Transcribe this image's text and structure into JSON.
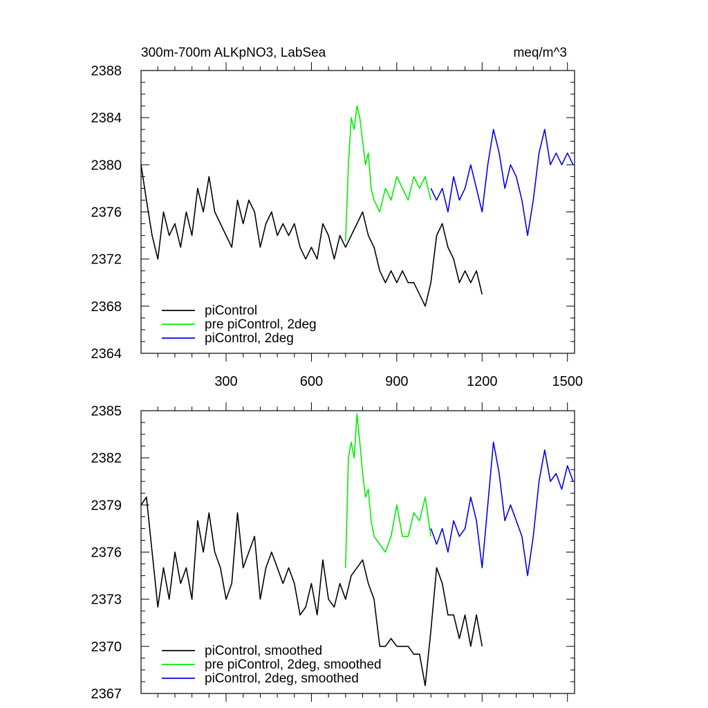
{
  "title_left": "300m-700m ALKpNO3, LabSea",
  "title_right": "meq/m^3",
  "colors": {
    "piControl": "#000000",
    "pre_piControl_2deg": "#00ee00",
    "piControl_2deg": "#0000ee"
  },
  "chart_data": [
    {
      "type": "line",
      "panel": "top",
      "title": "300m-700m ALKpNO3, LabSea",
      "units": "meq/m^3",
      "xlim": [
        1,
        1525
      ],
      "ylim": [
        2364,
        2388
      ],
      "x_ticks": [
        300,
        600,
        900,
        1200,
        1500
      ],
      "x_tick_labels": [
        "300",
        "600",
        "900",
        "1200",
        "1500"
      ],
      "y_ticks": [
        2364,
        2368,
        2372,
        2376,
        2380,
        2384,
        2388
      ],
      "y_tick_labels": [
        "2364",
        "2368",
        "2372",
        "2376",
        "2380",
        "2384",
        "2388"
      ],
      "legend_position": "bottom-left",
      "series": [
        {
          "name": "piControl",
          "color": "#000000",
          "x": [
            1,
            20,
            40,
            60,
            80,
            100,
            120,
            140,
            160,
            180,
            200,
            220,
            240,
            260,
            280,
            300,
            320,
            340,
            360,
            380,
            400,
            420,
            440,
            460,
            480,
            500,
            520,
            540,
            560,
            580,
            600,
            620,
            640,
            660,
            680,
            700,
            720,
            740,
            760,
            780,
            800,
            820,
            840,
            860,
            880,
            900,
            920,
            940,
            960,
            980,
            1000,
            1020,
            1040,
            1060,
            1080,
            1100,
            1120,
            1140,
            1160,
            1180,
            1200
          ],
          "y": [
            2380,
            2377,
            2374,
            2372,
            2376,
            2374,
            2375,
            2373,
            2376,
            2374,
            2378,
            2376,
            2379,
            2376,
            2375,
            2374,
            2373,
            2377,
            2375,
            2377,
            2376,
            2373,
            2375,
            2376,
            2374,
            2375,
            2374,
            2375,
            2373,
            2372,
            2373,
            2372,
            2375,
            2374,
            2372,
            2374,
            2373,
            2374,
            2375,
            2376,
            2374,
            2373,
            2371,
            2370,
            2371,
            2370,
            2371,
            2370,
            2370,
            2369,
            2368,
            2370,
            2374,
            2375,
            2373,
            2372,
            2370,
            2371,
            2370,
            2371,
            2369
          ]
        },
        {
          "name": "pre piControl, 2deg",
          "color": "#00ee00",
          "x": [
            720,
            730,
            740,
            750,
            760,
            770,
            780,
            790,
            800,
            810,
            820,
            840,
            860,
            880,
            900,
            920,
            940,
            960,
            980,
            1000,
            1020
          ],
          "y": [
            2373.5,
            2380,
            2384,
            2383,
            2385,
            2384,
            2382,
            2380,
            2381,
            2378,
            2377,
            2376,
            2378,
            2377,
            2379,
            2378,
            2377,
            2379,
            2378,
            2379,
            2377
          ]
        },
        {
          "name": "piControl, 2deg",
          "color": "#0000ee",
          "x": [
            1020,
            1040,
            1060,
            1080,
            1100,
            1120,
            1140,
            1160,
            1180,
            1200,
            1220,
            1240,
            1260,
            1280,
            1300,
            1320,
            1340,
            1360,
            1380,
            1400,
            1420,
            1440,
            1460,
            1480,
            1500,
            1520
          ],
          "y": [
            2378,
            2377,
            2378,
            2376,
            2379,
            2377,
            2378,
            2380,
            2378,
            2376,
            2380,
            2383,
            2381,
            2378,
            2380,
            2379,
            2377,
            2374,
            2377,
            2381,
            2383,
            2380,
            2381,
            2380,
            2381,
            2380
          ]
        }
      ]
    },
    {
      "type": "line",
      "panel": "bottom",
      "xlim": [
        1,
        1525
      ],
      "ylim": [
        2367,
        2385
      ],
      "x_ticks": [
        300,
        600,
        900,
        1200,
        1500
      ],
      "y_ticks": [
        2367,
        2370,
        2373,
        2376,
        2379,
        2382,
        2385
      ],
      "y_tick_labels": [
        "2367",
        "2370",
        "2373",
        "2376",
        "2379",
        "2382",
        "2385"
      ],
      "legend_position": "bottom-left",
      "series": [
        {
          "name": "piControl, smoothed",
          "color": "#000000",
          "x": [
            1,
            20,
            40,
            60,
            80,
            100,
            120,
            140,
            160,
            180,
            200,
            220,
            240,
            260,
            280,
            300,
            320,
            340,
            360,
            380,
            400,
            420,
            440,
            460,
            480,
            500,
            520,
            540,
            560,
            580,
            600,
            620,
            640,
            660,
            680,
            700,
            720,
            740,
            760,
            780,
            800,
            820,
            840,
            860,
            880,
            900,
            920,
            940,
            960,
            980,
            1000,
            1020,
            1040,
            1060,
            1080,
            1100,
            1120,
            1140,
            1160,
            1180,
            1200
          ],
          "y": [
            2379,
            2379.5,
            2376,
            2372.5,
            2375,
            2373,
            2376,
            2374,
            2375,
            2373,
            2378,
            2376,
            2378.5,
            2376,
            2375,
            2373,
            2374,
            2378.5,
            2375,
            2376,
            2377,
            2373,
            2375,
            2376,
            2375,
            2374,
            2375,
            2374,
            2372,
            2372.5,
            2374,
            2372,
            2375.5,
            2373,
            2372.5,
            2374,
            2373,
            2374.5,
            2375,
            2375.5,
            2374,
            2373,
            2370,
            2370,
            2370.5,
            2370,
            2370,
            2370,
            2369.5,
            2369.5,
            2367.5,
            2371,
            2375,
            2374,
            2372,
            2372,
            2370.5,
            2372,
            2370,
            2372,
            2370
          ]
        },
        {
          "name": "pre piControl, 2deg, smoothed",
          "color": "#00ee00",
          "x": [
            720,
            730,
            740,
            750,
            760,
            770,
            780,
            790,
            800,
            810,
            820,
            840,
            860,
            880,
            900,
            920,
            940,
            960,
            980,
            1000,
            1020
          ],
          "y": [
            2375,
            2382,
            2383,
            2382,
            2384.8,
            2383,
            2381,
            2379.5,
            2380,
            2378,
            2377,
            2376.5,
            2376,
            2377,
            2379,
            2377,
            2377,
            2378.5,
            2378,
            2379.5,
            2377
          ]
        },
        {
          "name": "piControl, 2deg, smoothed",
          "color": "#0000ee",
          "x": [
            1020,
            1040,
            1060,
            1080,
            1100,
            1120,
            1140,
            1160,
            1180,
            1200,
            1220,
            1240,
            1260,
            1280,
            1300,
            1320,
            1340,
            1360,
            1380,
            1400,
            1420,
            1440,
            1460,
            1480,
            1500,
            1520
          ],
          "y": [
            2377.5,
            2376.5,
            2377.5,
            2376,
            2378,
            2377,
            2377.5,
            2379.5,
            2378,
            2375,
            2379,
            2383,
            2381,
            2378,
            2379,
            2378,
            2377,
            2374.5,
            2377,
            2380.5,
            2382.5,
            2380.5,
            2381,
            2380,
            2381.5,
            2380.5
          ]
        }
      ]
    }
  ]
}
